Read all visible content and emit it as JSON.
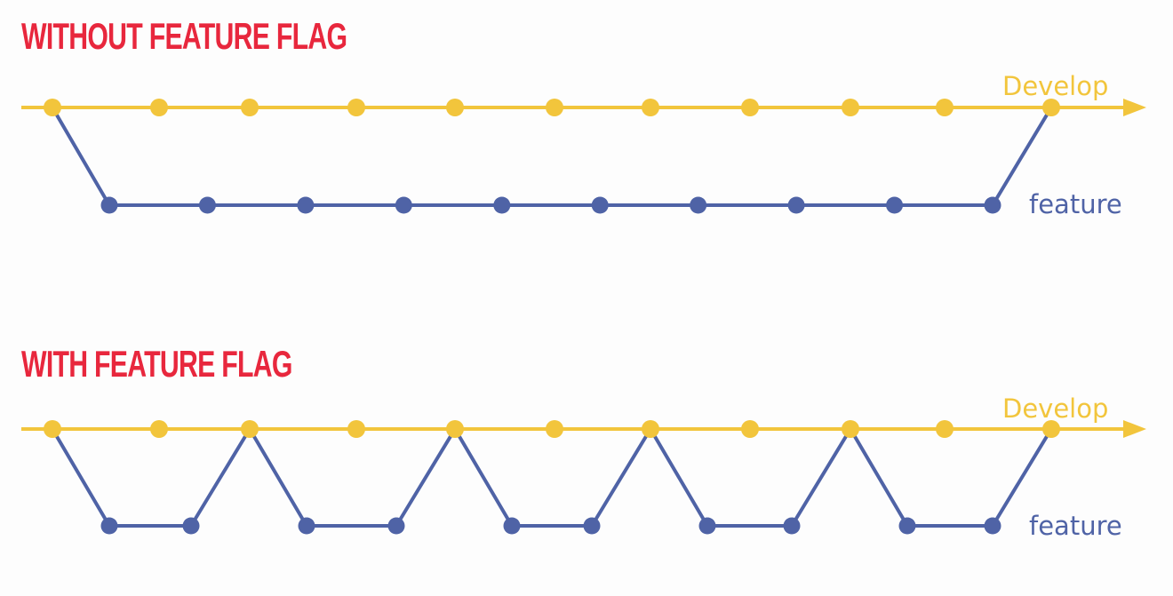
{
  "colors": {
    "title": "#e8273d",
    "develop": "#f2c53c",
    "feature": "#4f63a6",
    "background": "#fdfdfd"
  },
  "sections": [
    {
      "title": "WITHOUT FEATURE FLAG",
      "develop_label": "Develop",
      "feature_label": "feature",
      "develop_commits": 11,
      "feature_commits": 10,
      "feature_branches": [
        {
          "from_develop_commit": 1,
          "feature_commits": 10,
          "merge_to_develop_commit": 11
        }
      ]
    },
    {
      "title": "WITH FEATURE FLAG",
      "develop_label": "Develop",
      "feature_label": "feature",
      "develop_commits": 11,
      "feature_commits": 10,
      "feature_branches": [
        {
          "from_develop_commit": 1,
          "feature_commits": 2,
          "merge_to_develop_commit": 3
        },
        {
          "from_develop_commit": 3,
          "feature_commits": 2,
          "merge_to_develop_commit": 5
        },
        {
          "from_develop_commit": 5,
          "feature_commits": 2,
          "merge_to_develop_commit": 7
        },
        {
          "from_develop_commit": 7,
          "feature_commits": 2,
          "merge_to_develop_commit": 9
        },
        {
          "from_develop_commit": 9,
          "feature_commits": 2,
          "merge_to_develop_commit": 11
        }
      ]
    }
  ]
}
